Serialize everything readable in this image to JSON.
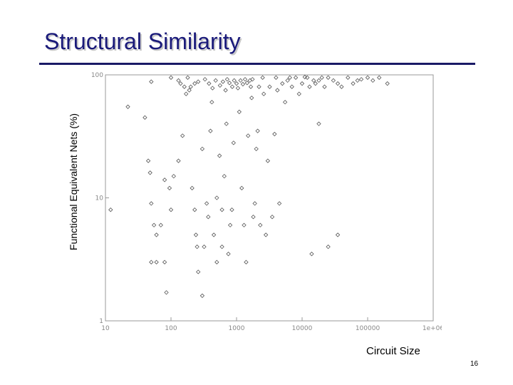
{
  "slide": {
    "title": "Structural Similarity",
    "page_number": "16"
  },
  "chart_data": {
    "type": "scatter",
    "title": "",
    "xlabel": "Circuit Size",
    "ylabel": "Functional Equivalent Nets (%)",
    "xscale": "log",
    "yscale": "log",
    "xlim": [
      10,
      1000000
    ],
    "ylim": [
      1,
      100
    ],
    "grid": false,
    "marker": "open-diamond",
    "marker_color": "#555555",
    "x_ticks": [
      10,
      100,
      1000,
      10000,
      100000,
      1000000
    ],
    "x_tick_labels": [
      "10",
      "100",
      "1000",
      "10000",
      "100000",
      "1e+06"
    ],
    "y_ticks": [
      1,
      10,
      100
    ],
    "y_tick_labels": [
      "1",
      "10",
      "100"
    ],
    "points": [
      [
        12,
        8
      ],
      [
        22,
        55
      ],
      [
        40,
        45
      ],
      [
        50,
        88
      ],
      [
        80,
        14
      ],
      [
        80,
        3
      ],
      [
        85,
        1.7
      ],
      [
        100,
        95
      ],
      [
        45,
        20
      ],
      [
        48,
        16
      ],
      [
        50,
        9
      ],
      [
        55,
        6
      ],
      [
        60,
        5
      ],
      [
        50,
        3
      ],
      [
        60,
        3
      ],
      [
        70,
        6
      ],
      [
        95,
        12
      ],
      [
        110,
        15
      ],
      [
        100,
        8
      ],
      [
        130,
        20
      ],
      [
        150,
        32
      ],
      [
        170,
        70
      ],
      [
        180,
        95
      ],
      [
        200,
        80
      ],
      [
        210,
        12
      ],
      [
        230,
        8
      ],
      [
        240,
        5
      ],
      [
        250,
        4
      ],
      [
        260,
        2.5
      ],
      [
        300,
        25
      ],
      [
        300,
        1.6
      ],
      [
        320,
        4
      ],
      [
        350,
        9
      ],
      [
        370,
        7
      ],
      [
        400,
        35
      ],
      [
        420,
        60
      ],
      [
        450,
        5
      ],
      [
        500,
        3
      ],
      [
        500,
        10
      ],
      [
        550,
        22
      ],
      [
        600,
        8
      ],
      [
        600,
        4
      ],
      [
        650,
        15
      ],
      [
        700,
        40
      ],
      [
        750,
        3.5
      ],
      [
        800,
        6
      ],
      [
        850,
        8
      ],
      [
        900,
        28
      ],
      [
        1000,
        85
      ],
      [
        1100,
        50
      ],
      [
        1200,
        12
      ],
      [
        1300,
        6
      ],
      [
        1400,
        3
      ],
      [
        1500,
        32
      ],
      [
        1600,
        90
      ],
      [
        1700,
        65
      ],
      [
        1800,
        7
      ],
      [
        1900,
        9
      ],
      [
        2000,
        25
      ],
      [
        2100,
        35
      ],
      [
        2200,
        80
      ],
      [
        2300,
        6
      ],
      [
        2500,
        95
      ],
      [
        2600,
        70
      ],
      [
        2800,
        5
      ],
      [
        3000,
        20
      ],
      [
        3200,
        80
      ],
      [
        3500,
        7
      ],
      [
        3800,
        33
      ],
      [
        4000,
        95
      ],
      [
        4200,
        75
      ],
      [
        4500,
        9
      ],
      [
        5000,
        85
      ],
      [
        5500,
        60
      ],
      [
        6000,
        90
      ],
      [
        6500,
        95
      ],
      [
        7000,
        80
      ],
      [
        8000,
        95
      ],
      [
        9000,
        70
      ],
      [
        10000,
        85
      ],
      [
        11000,
        96
      ],
      [
        12000,
        95
      ],
      [
        13000,
        80
      ],
      [
        14000,
        3.5
      ],
      [
        15000,
        90
      ],
      [
        16000,
        85
      ],
      [
        18000,
        90
      ],
      [
        20000,
        95
      ],
      [
        22000,
        80
      ],
      [
        25000,
        95
      ],
      [
        30000,
        90
      ],
      [
        35000,
        85
      ],
      [
        40000,
        80
      ],
      [
        50000,
        95
      ],
      [
        60000,
        85
      ],
      [
        70000,
        90
      ],
      [
        80000,
        92
      ],
      [
        100000,
        95
      ],
      [
        120000,
        90
      ],
      [
        150000,
        95
      ],
      [
        200000,
        85
      ],
      [
        18000,
        40
      ],
      [
        25000,
        4
      ],
      [
        35000,
        5
      ],
      [
        130,
        90
      ],
      [
        140,
        85
      ],
      [
        160,
        80
      ],
      [
        190,
        75
      ],
      [
        230,
        85
      ],
      [
        260,
        88
      ],
      [
        330,
        92
      ],
      [
        380,
        85
      ],
      [
        430,
        78
      ],
      [
        480,
        90
      ],
      [
        560,
        82
      ],
      [
        620,
        88
      ],
      [
        680,
        75
      ],
      [
        720,
        92
      ],
      [
        780,
        86
      ],
      [
        860,
        80
      ],
      [
        920,
        90
      ],
      [
        1050,
        78
      ],
      [
        1150,
        90
      ],
      [
        1250,
        84
      ],
      [
        1350,
        92
      ],
      [
        1450,
        86
      ],
      [
        1650,
        80
      ],
      [
        1750,
        92
      ]
    ]
  }
}
